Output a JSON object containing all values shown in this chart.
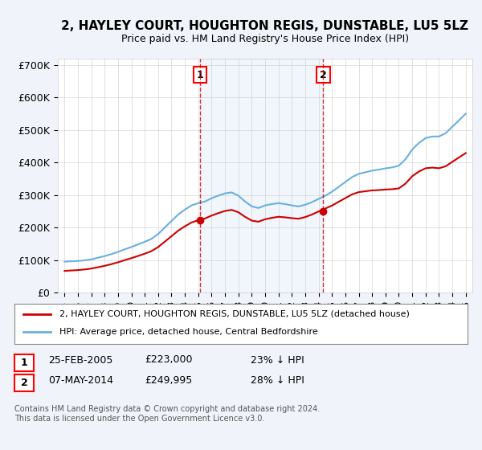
{
  "title": "2, HAYLEY COURT, HOUGHTON REGIS, DUNSTABLE, LU5 5LZ",
  "subtitle": "Price paid vs. HM Land Registry's House Price Index (HPI)",
  "ylabel": "",
  "xlabel": "",
  "ylim": [
    0,
    720000
  ],
  "yticks": [
    0,
    100000,
    200000,
    300000,
    400000,
    500000,
    600000,
    700000
  ],
  "ytick_labels": [
    "£0",
    "£100K",
    "£200K",
    "£300K",
    "£400K",
    "£500K",
    "£600K",
    "£700K"
  ],
  "hpi_color": "#6ab0de",
  "price_color": "#cc0000",
  "vline_color": "#cc0000",
  "marker1_x": 2005.15,
  "marker2_x": 2014.35,
  "marker1_price": 223000,
  "marker2_price": 249995,
  "legend_line1": "2, HAYLEY COURT, HOUGHTON REGIS, DUNSTABLE, LU5 5LZ (detached house)",
  "legend_line2": "HPI: Average price, detached house, Central Bedfordshire",
  "annotation1_label": "1",
  "annotation2_label": "2",
  "table_row1": [
    "1",
    "25-FEB-2005",
    "£223,000",
    "23% ↓ HPI"
  ],
  "table_row2": [
    "2",
    "07-MAY-2014",
    "£249,995",
    "28% ↓ HPI"
  ],
  "footer": "Contains HM Land Registry data © Crown copyright and database right 2024.\nThis data is licensed under the Open Government Licence v3.0.",
  "background_color": "#f0f4fa",
  "plot_bg": "#ffffff"
}
